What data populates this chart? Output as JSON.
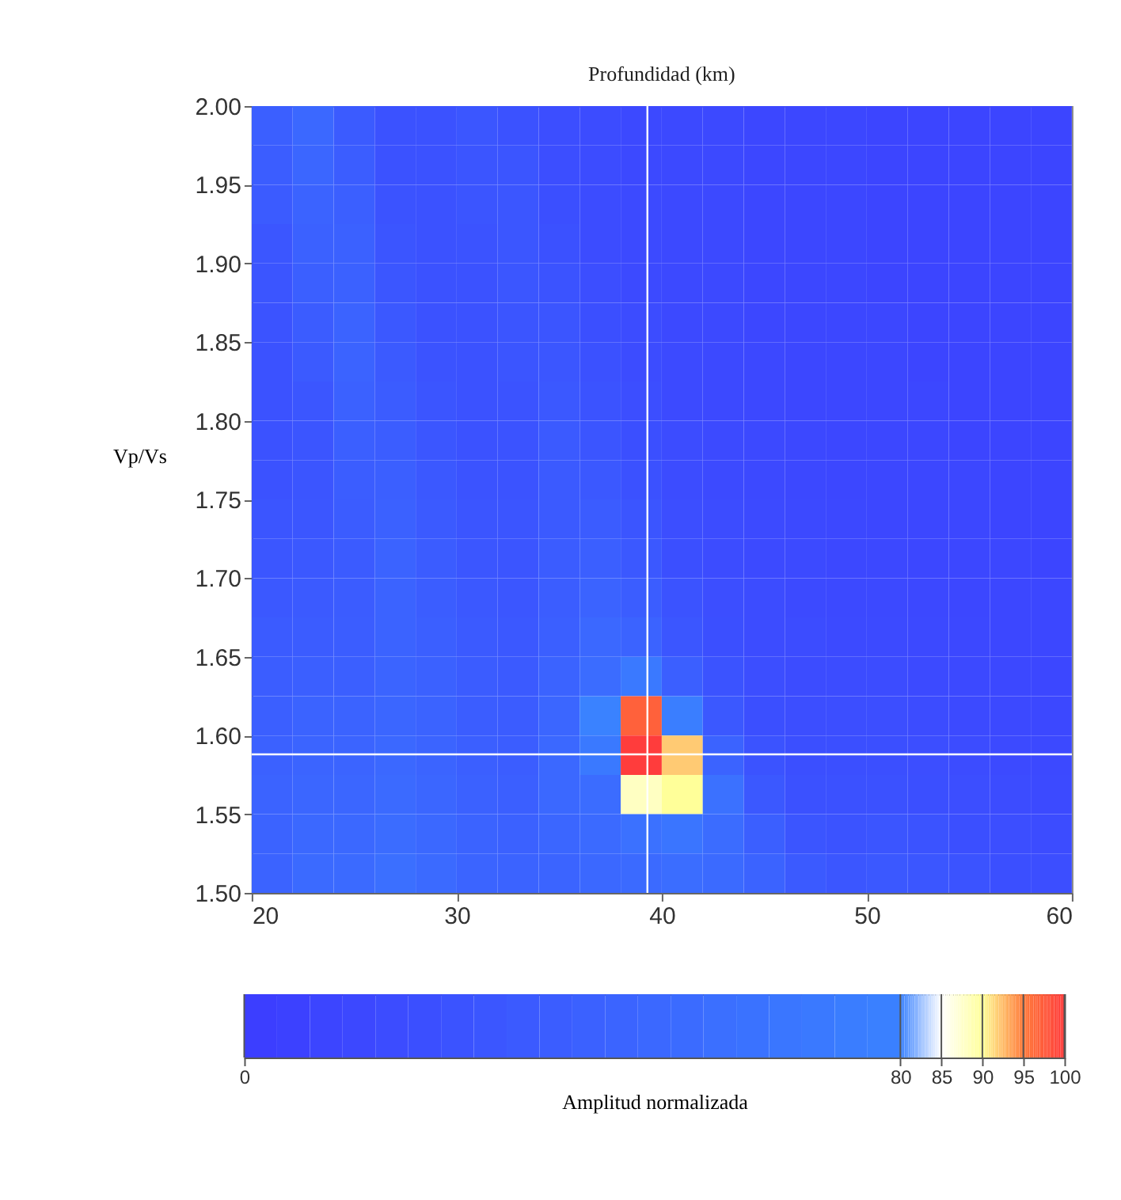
{
  "chart_data": {
    "type": "heatmap",
    "xlabel": "Profundidad (km)",
    "ylabel": "Vp/Vs",
    "clabel": "Amplitud normalizada",
    "x": [
      21,
      23,
      25,
      27,
      29,
      31,
      33,
      35,
      37,
      39,
      41,
      43,
      45,
      47,
      49,
      51,
      53,
      55,
      57,
      59
    ],
    "y": [
      1.9875,
      1.9625,
      1.9375,
      1.9125,
      1.8875,
      1.8625,
      1.8375,
      1.8125,
      1.7875,
      1.7625,
      1.7375,
      1.7125,
      1.6875,
      1.6625,
      1.6375,
      1.6125,
      1.5875,
      1.5625,
      1.5375,
      1.5125
    ],
    "xlim": [
      20,
      60
    ],
    "xticks": [
      20,
      30,
      40,
      50,
      60
    ],
    "ylim": [
      1.5,
      2.0
    ],
    "yticks": [
      {
        "value": 1.5,
        "label": "1.50"
      },
      1.55,
      {
        "value": 1.6,
        "label": "1.60"
      },
      1.65,
      {
        "value": 1.7,
        "label": "1.70"
      },
      1.75,
      {
        "value": 1.8,
        "label": "1.80"
      },
      1.85,
      {
        "value": 1.9,
        "label": "1.90"
      },
      1.95,
      {
        "value": 2.0,
        "label": "2.00"
      }
    ],
    "clim": [
      0,
      100
    ],
    "cticks": [
      0,
      80,
      85,
      90,
      95,
      100
    ],
    "ref_lines": [
      {
        "axis": "x",
        "value": 39.3,
        "color": "#ffffff"
      },
      {
        "axis": "y",
        "value": 1.588,
        "color": "#ffffff"
      }
    ],
    "grid": false,
    "cells": [
      [
        40,
        50,
        35,
        25,
        25,
        30,
        25,
        20,
        18,
        15,
        15,
        15,
        12,
        12,
        12,
        10,
        10,
        10,
        10,
        10
      ],
      [
        38,
        48,
        38,
        25,
        25,
        28,
        28,
        20,
        18,
        15,
        15,
        15,
        12,
        12,
        12,
        10,
        10,
        10,
        10,
        10
      ],
      [
        35,
        45,
        40,
        26,
        25,
        28,
        30,
        22,
        18,
        16,
        15,
        15,
        12,
        12,
        12,
        10,
        10,
        10,
        10,
        10
      ],
      [
        30,
        42,
        42,
        28,
        25,
        26,
        30,
        24,
        18,
        16,
        15,
        15,
        12,
        12,
        12,
        10,
        10,
        10,
        10,
        10
      ],
      [
        28,
        40,
        42,
        30,
        25,
        25,
        30,
        26,
        20,
        16,
        15,
        15,
        13,
        12,
        12,
        10,
        10,
        10,
        10,
        10
      ],
      [
        26,
        36,
        44,
        32,
        25,
        25,
        28,
        28,
        22,
        18,
        15,
        15,
        13,
        12,
        12,
        12,
        10,
        10,
        10,
        10
      ],
      [
        25,
        34,
        44,
        34,
        26,
        25,
        28,
        30,
        24,
        18,
        16,
        15,
        14,
        12,
        12,
        12,
        10,
        10,
        10,
        10
      ],
      [
        25,
        30,
        42,
        36,
        28,
        25,
        26,
        32,
        26,
        20,
        16,
        15,
        14,
        13,
        12,
        12,
        12,
        10,
        10,
        10
      ],
      [
        25,
        28,
        40,
        38,
        30,
        25,
        26,
        34,
        28,
        22,
        18,
        16,
        15,
        14,
        13,
        12,
        12,
        10,
        10,
        10
      ],
      [
        25,
        28,
        38,
        40,
        32,
        26,
        26,
        34,
        32,
        24,
        18,
        16,
        15,
        14,
        13,
        12,
        12,
        12,
        10,
        10
      ],
      [
        28,
        30,
        36,
        42,
        34,
        28,
        28,
        34,
        36,
        28,
        20,
        18,
        16,
        15,
        14,
        13,
        12,
        12,
        10,
        10
      ],
      [
        30,
        32,
        35,
        44,
        36,
        30,
        28,
        36,
        40,
        32,
        22,
        18,
        16,
        16,
        14,
        14,
        12,
        12,
        12,
        10
      ],
      [
        32,
        34,
        36,
        44,
        38,
        32,
        30,
        38,
        44,
        38,
        26,
        20,
        18,
        16,
        15,
        15,
        14,
        12,
        12,
        12
      ],
      [
        35,
        36,
        38,
        45,
        40,
        34,
        32,
        40,
        50,
        45,
        30,
        22,
        18,
        18,
        16,
        16,
        15,
        14,
        12,
        12
      ],
      [
        38,
        40,
        40,
        46,
        42,
        36,
        34,
        44,
        55,
        70,
        40,
        26,
        20,
        18,
        18,
        18,
        16,
        15,
        14,
        12
      ],
      [
        40,
        44,
        44,
        48,
        44,
        38,
        36,
        48,
        80,
        97,
        75,
        32,
        22,
        20,
        20,
        20,
        18,
        16,
        15,
        14
      ],
      [
        42,
        46,
        46,
        50,
        46,
        40,
        38,
        50,
        70,
        100,
        92,
        45,
        26,
        22,
        22,
        22,
        20,
        18,
        16,
        15
      ],
      [
        44,
        48,
        48,
        52,
        48,
        42,
        40,
        50,
        55,
        88,
        90,
        60,
        32,
        24,
        24,
        24,
        22,
        20,
        18,
        16
      ],
      [
        45,
        50,
        50,
        55,
        50,
        44,
        42,
        48,
        52,
        60,
        65,
        55,
        40,
        28,
        26,
        28,
        26,
        22,
        20,
        18
      ],
      [
        45,
        52,
        52,
        58,
        52,
        46,
        44,
        46,
        50,
        52,
        56,
        52,
        45,
        34,
        30,
        32,
        30,
        26,
        22,
        20
      ]
    ]
  }
}
